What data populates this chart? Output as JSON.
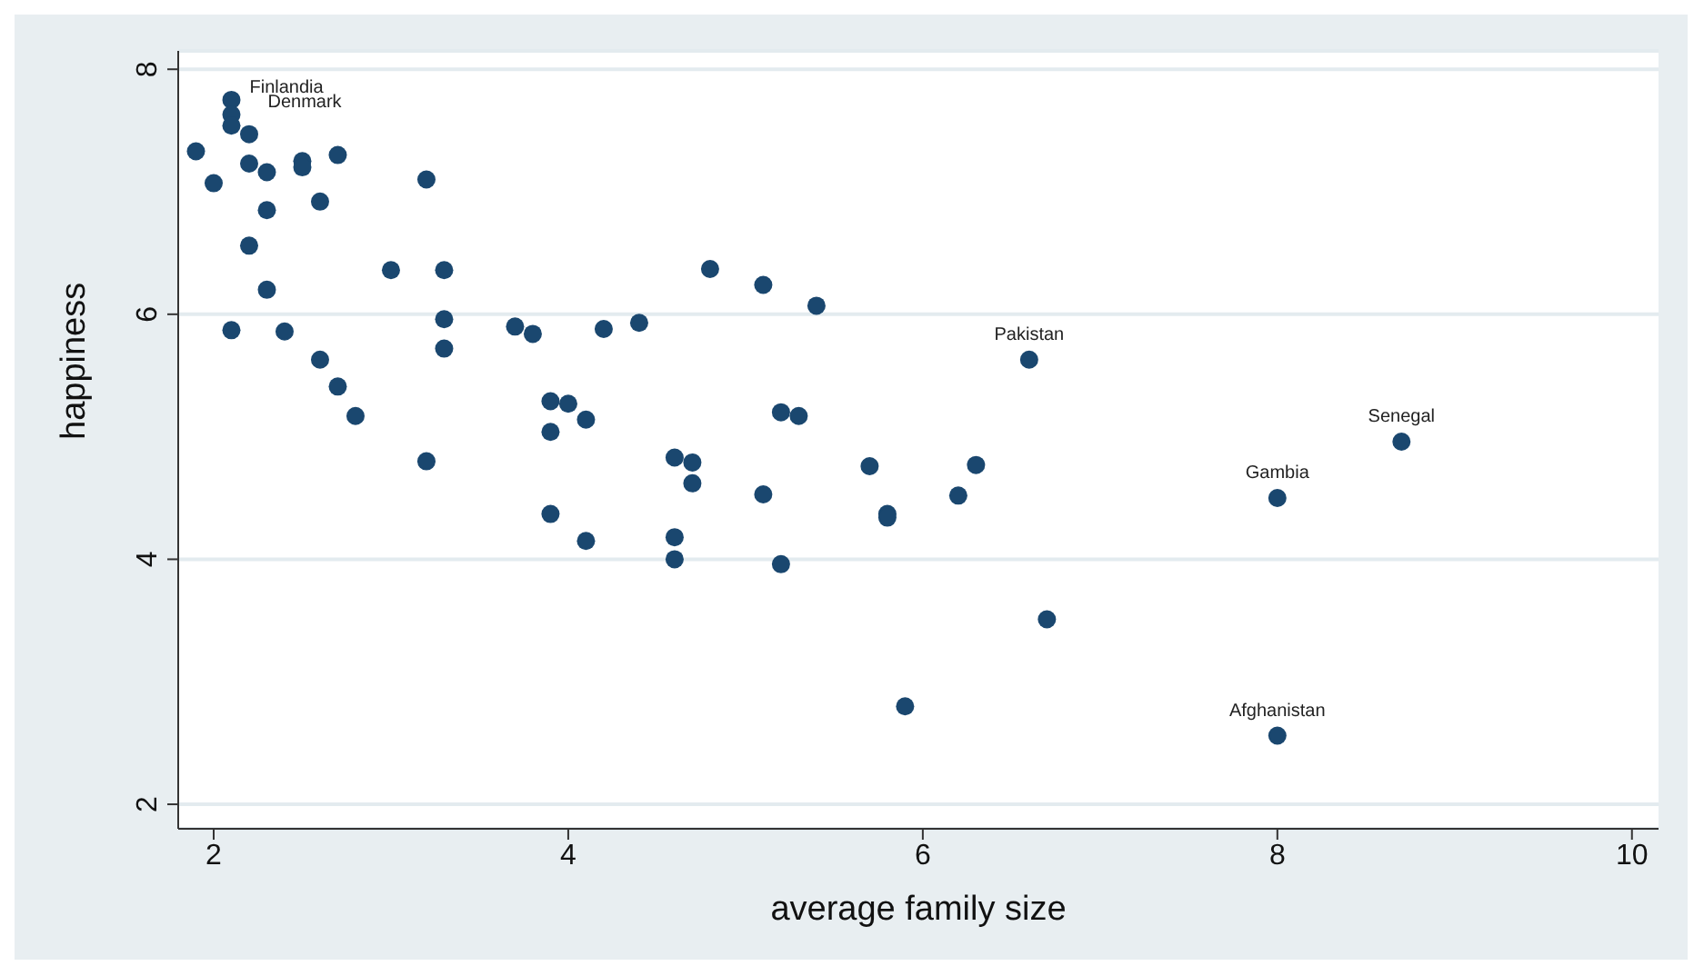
{
  "chart_data": {
    "type": "scatter",
    "xlabel": "average family size",
    "ylabel": "happiness",
    "xlim": [
      1.8,
      10.15
    ],
    "ylim": [
      1.8,
      8.15
    ],
    "xticks": [
      2,
      4,
      6,
      8,
      10
    ],
    "yticks": [
      2,
      4,
      6,
      8
    ],
    "grid": "y",
    "legend": false,
    "marker": "circle",
    "series": [
      {
        "color": "#1a476f",
        "x": [
          1.9,
          2.1,
          2.1,
          2.1,
          2.2,
          2.0,
          2.2,
          2.3,
          2.5,
          2.5,
          2.7,
          3.2,
          2.6,
          2.3,
          2.2,
          2.3,
          2.1,
          2.4,
          3.0,
          3.3,
          3.3,
          3.3,
          2.6,
          2.7,
          2.8,
          3.2,
          3.7,
          3.8,
          4.2,
          4.4,
          4.8,
          5.1,
          5.4,
          3.9,
          4.0,
          4.1,
          3.9,
          4.6,
          4.7,
          4.7,
          5.2,
          5.3,
          5.7,
          6.3,
          6.2,
          5.1,
          5.8,
          5.8,
          3.9,
          4.1,
          4.6,
          4.6,
          5.2,
          5.9,
          6.6,
          6.7,
          8.0,
          8.7,
          8.0
        ],
        "values": [
          7.33,
          7.75,
          7.63,
          7.54,
          7.47,
          7.07,
          7.23,
          7.16,
          7.25,
          7.2,
          7.3,
          7.1,
          6.92,
          6.85,
          6.56,
          6.2,
          5.87,
          5.86,
          6.36,
          6.36,
          5.96,
          5.72,
          5.63,
          5.41,
          5.17,
          4.8,
          5.9,
          5.84,
          5.88,
          5.93,
          6.37,
          6.24,
          6.07,
          5.29,
          5.27,
          5.14,
          5.04,
          4.83,
          4.79,
          4.62,
          5.2,
          5.17,
          4.76,
          4.77,
          4.52,
          4.53,
          4.37,
          4.34,
          4.37,
          4.15,
          4.18,
          4.0,
          3.96,
          2.8,
          5.63,
          3.51,
          4.5,
          4.96,
          2.56
        ]
      }
    ],
    "annotations": [
      {
        "text": "Finlandia",
        "x": 2.1,
        "y": 7.75
      },
      {
        "text": "Denmark",
        "x": 2.1,
        "y": 7.63
      },
      {
        "text": "Pakistan",
        "x": 6.6,
        "y": 5.63
      },
      {
        "text": "Gambia",
        "x": 8.0,
        "y": 4.5
      },
      {
        "text": "Senegal",
        "x": 8.7,
        "y": 4.96
      },
      {
        "text": "Afghanistan",
        "x": 8.0,
        "y": 2.56
      }
    ]
  }
}
